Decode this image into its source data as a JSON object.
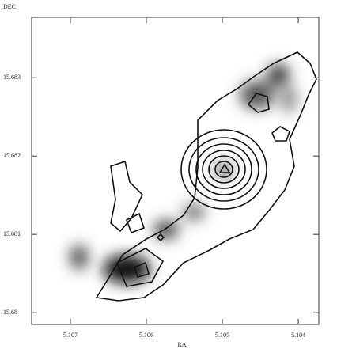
{
  "chart_data": {
    "type": "contour",
    "x_label": "RA",
    "y_label": "DEC",
    "xlim": [
      5.10751,
      5.10373
    ],
    "ylim": [
      15.67985,
      15.68377
    ],
    "xticks": [
      5.107,
      5.106,
      5.105,
      5.104
    ],
    "yticks": [
      15.683,
      15.682,
      15.681,
      15.68
    ]
  }
}
